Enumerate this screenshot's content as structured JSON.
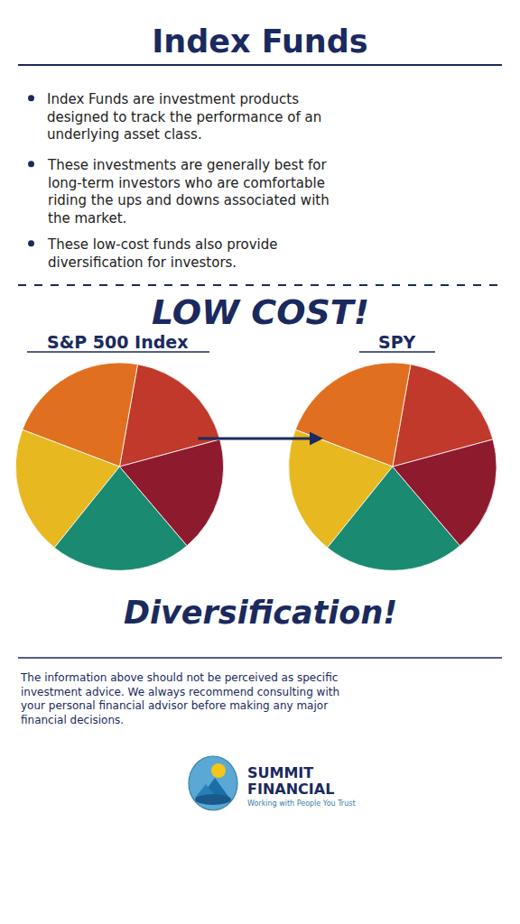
{
  "title": "Index Funds",
  "color": "#1a2a5e",
  "annotations": [
    "Index Funds are investment products\ndesigned to track the performance of an\nunderlying asset class.",
    "These investments are generally best for\nlong-term investors who are comfortable\nriding the ups and downs associated with\nthe market.",
    "These low-cost funds also provide\ndiversification for investors.",
    "LOW COST!",
    "Diversification!",
    "The information above should not be perceived as specific\ninvestment advice. We always recommend consulting with\nyour personal financial advisor before making any major\nfinancial decisions.",
    "SUMMIT",
    "FINANCIAL",
    "Working with People You Trust"
  ],
  "chart_data": [
    {
      "type": "pie",
      "title": "S&P 500 Index",
      "values": [
        18,
        22,
        20,
        22,
        18
      ],
      "colors": [
        "#c0392b",
        "#e07020",
        "#e8b820",
        "#1a8a70",
        "#8e1a2e"
      ]
    },
    {
      "type": "pie",
      "title": "SPY",
      "values": [
        18,
        22,
        20,
        22,
        18
      ],
      "colors": [
        "#c0392b",
        "#e07020",
        "#e8b820",
        "#1a8a70",
        "#8e1a2e"
      ]
    }
  ]
}
